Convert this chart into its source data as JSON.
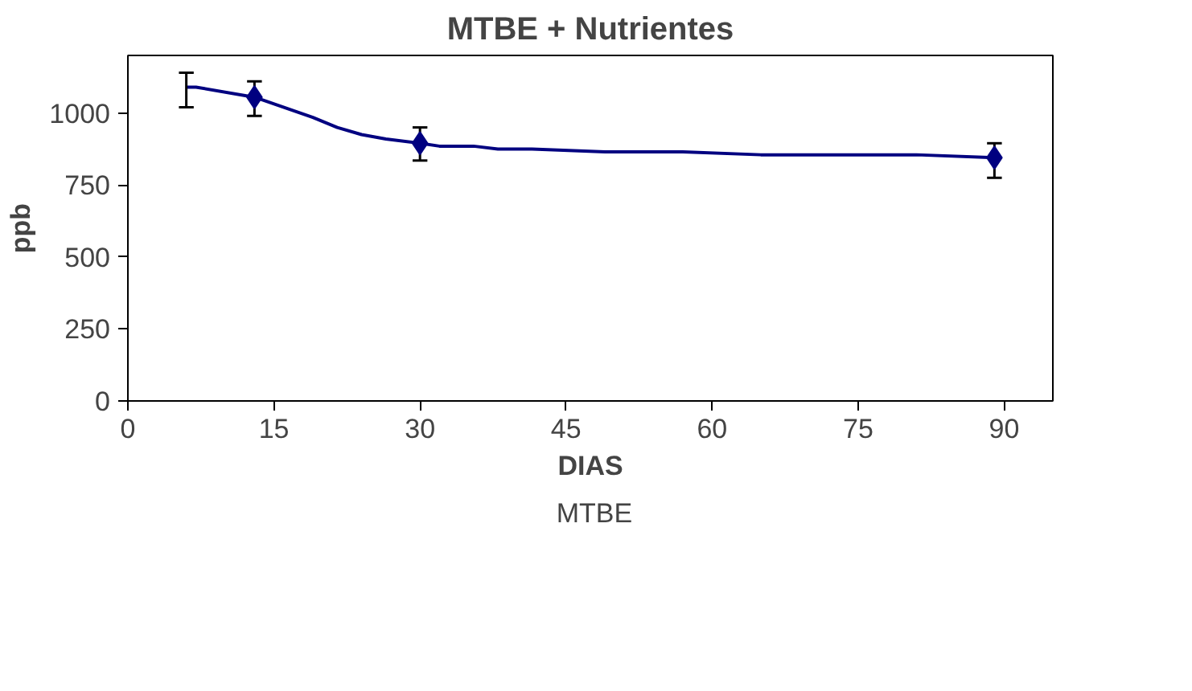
{
  "chart_data": {
    "type": "line",
    "title": "MTBE + Nutrientes",
    "xlabel": "DIAS",
    "ylabel": "ppb",
    "xlim": [
      0,
      95
    ],
    "xticks": [
      0,
      15,
      30,
      45,
      60,
      75,
      90
    ],
    "ylim": [
      0,
      1200
    ],
    "yticks": [
      0,
      250,
      500,
      750,
      1000
    ],
    "grid": false,
    "legend": "bottom",
    "series": [
      {
        "name": "MTBE",
        "color": "#000080",
        "marker": "none",
        "x": [
          6,
          7,
          13,
          19,
          21.5,
          24,
          26.5,
          30,
          32,
          35.5,
          38,
          41.5,
          49,
          57,
          65,
          81,
          89
        ],
        "values": [
          1090,
          1090,
          1055,
          985,
          950,
          925,
          910,
          895,
          885,
          885,
          875,
          875,
          865,
          865,
          855,
          855,
          845
        ],
        "errors": [
          [
            1020,
            1140
          ],
          null,
          [
            990,
            1110
          ],
          null,
          null,
          null,
          null,
          [
            835,
            950
          ],
          null,
          null,
          null,
          null,
          null,
          null,
          null,
          null,
          [
            775,
            895
          ]
        ]
      },
      {
        "type": "scatter",
        "color": "#000080",
        "marker": "diamond",
        "x": [
          13,
          30,
          89
        ],
        "values": [
          1055,
          895,
          845
        ]
      }
    ]
  }
}
